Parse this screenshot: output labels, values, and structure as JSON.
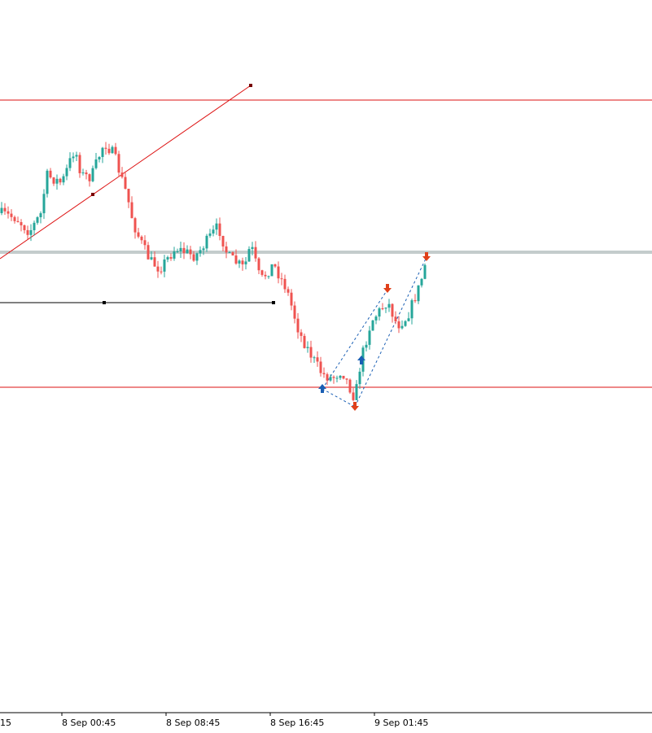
{
  "time_axis": {
    "labels": [
      "15",
      "8 Sep 00:45",
      "8 Sep 08:45",
      "8 Sep 16:45",
      "9 Sep 01:45"
    ]
  }
}
